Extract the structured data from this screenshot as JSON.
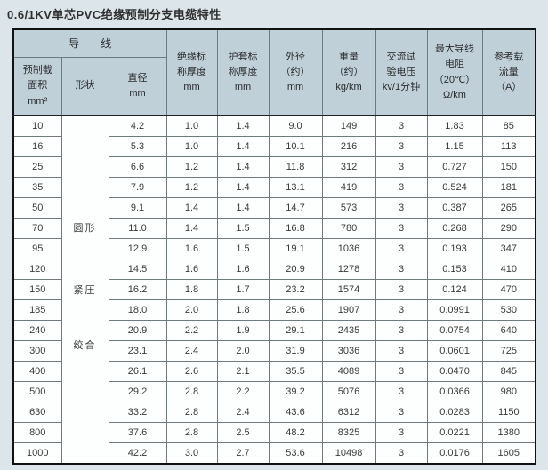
{
  "page": {
    "title": "0.6/1KV单芯PVC绝缘预制分支电缆特性",
    "background_color": "#dce5e9"
  },
  "table": {
    "header": {
      "background_color": "#bfd0d9",
      "conductor_group_label": "导　　线",
      "sub_columns": [
        "预制截\n面积\nmm²",
        "形状",
        "直径\nmm"
      ],
      "columns": [
        "绝缘标\n称厚度\nmm",
        "护套标\n称厚度\nmm",
        "外径\n（约）\nmm",
        "重量\n（约）\nkg/km",
        "交流试\n验电压\nkv/1分钟",
        "最大导线\n电阻\n（20℃）\nΩ/km",
        "参考载\n流量\n（A）"
      ]
    },
    "shape_labels": [
      "圆形",
      "紧压",
      "绞合"
    ],
    "rows": [
      [
        "10",
        "4.2",
        "1.0",
        "1.4",
        "9.0",
        "149",
        "3",
        "1.83",
        "85"
      ],
      [
        "16",
        "5.3",
        "1.0",
        "1.4",
        "10.1",
        "216",
        "3",
        "1.15",
        "113"
      ],
      [
        "25",
        "6.6",
        "1.2",
        "1.4",
        "11.8",
        "312",
        "3",
        "0.727",
        "150"
      ],
      [
        "35",
        "7.9",
        "1.2",
        "1.4",
        "13.1",
        "419",
        "3",
        "0.524",
        "181"
      ],
      [
        "50",
        "9.1",
        "1.4",
        "1.4",
        "14.7",
        "573",
        "3",
        "0.387",
        "265"
      ],
      [
        "70",
        "11.0",
        "1.4",
        "1.5",
        "16.8",
        "780",
        "3",
        "0.268",
        "290"
      ],
      [
        "95",
        "12.9",
        "1.6",
        "1.5",
        "19.1",
        "1036",
        "3",
        "0.193",
        "347"
      ],
      [
        "120",
        "14.5",
        "1.6",
        "1.6",
        "20.9",
        "1278",
        "3",
        "0.153",
        "410"
      ],
      [
        "150",
        "16.2",
        "1.8",
        "1.7",
        "23.2",
        "1574",
        "3",
        "0.124",
        "470"
      ],
      [
        "185",
        "18.0",
        "2.0",
        "1.8",
        "25.6",
        "1907",
        "3",
        "0.0991",
        "530"
      ],
      [
        "240",
        "20.9",
        "2.2",
        "1.9",
        "29.1",
        "2435",
        "3",
        "0.0754",
        "640"
      ],
      [
        "300",
        "23.1",
        "2.4",
        "2.0",
        "31.9",
        "3036",
        "3",
        "0.0601",
        "725"
      ],
      [
        "400",
        "26.1",
        "2.6",
        "2.1",
        "35.5",
        "4089",
        "3",
        "0.0470",
        "845"
      ],
      [
        "500",
        "29.2",
        "2.8",
        "2.2",
        "39.2",
        "5076",
        "3",
        "0.0366",
        "980"
      ],
      [
        "630",
        "33.2",
        "2.8",
        "2.4",
        "43.6",
        "6312",
        "3",
        "0.0283",
        "1150"
      ],
      [
        "800",
        "37.6",
        "2.8",
        "2.5",
        "48.2",
        "8325",
        "3",
        "0.0221",
        "1380"
      ],
      [
        "1000",
        "42.2",
        "3.0",
        "2.7",
        "53.6",
        "10498",
        "3",
        "0.0176",
        "1605"
      ]
    ]
  }
}
